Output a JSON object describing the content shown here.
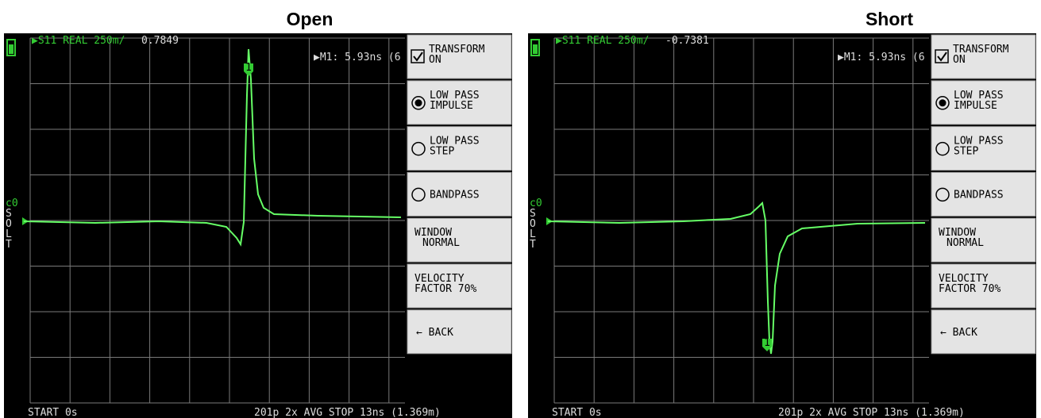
{
  "panels": [
    {
      "title": "Open",
      "trace_label": "▶S11 REAL 250m/",
      "trace_value": "0.7849",
      "marker_info": "▶M1: 5.93ns (6",
      "marker": "1",
      "menu": [
        [
          "TRANSFORM",
          "ON"
        ],
        [
          "LOW PASS",
          "IMPULSE"
        ],
        [
          "LOW PASS",
          "STEP"
        ],
        [
          "BANDPASS"
        ],
        [
          "WINDOW",
          "NORMAL"
        ],
        [
          "VELOCITY",
          "FACTOR 70%"
        ],
        [
          "← BACK"
        ]
      ],
      "status": [
        "c0",
        "S",
        "O",
        "L",
        "T"
      ],
      "footer_start": "START 0s",
      "footer_info": "201p  2x AVG   STOP 13ns (1.369m)"
    },
    {
      "title": "Short",
      "trace_label": "▶S11 REAL 250m/",
      "trace_value": "-0.7381",
      "marker_info": "▶M1: 5.93ns (6",
      "marker": "1",
      "menu": [
        [
          "TRANSFORM",
          "ON"
        ],
        [
          "LOW PASS",
          "IMPULSE"
        ],
        [
          "LOW PASS",
          "STEP"
        ],
        [
          "BANDPASS"
        ],
        [
          "WINDOW",
          "NORMAL"
        ],
        [
          "VELOCITY",
          "FACTOR 70%"
        ],
        [
          "← BACK"
        ]
      ],
      "status": [
        "c0",
        "S",
        "O",
        "L",
        "T"
      ],
      "footer_start": "START 0s",
      "footer_info": "201p  2x AVG   STOP 13ns (1.369m)"
    }
  ]
}
